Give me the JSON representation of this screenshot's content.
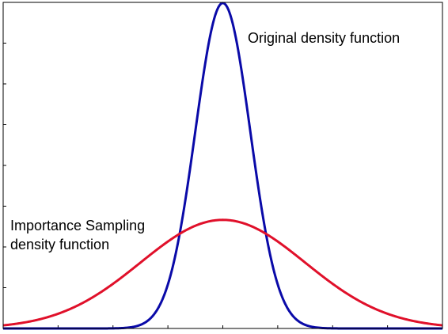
{
  "chart_data": {
    "type": "line",
    "title": "",
    "xlabel": "",
    "ylabel": "",
    "xlim": [
      -4,
      4
    ],
    "ylim": [
      0,
      1.0
    ],
    "grid": false,
    "x_ticks": [
      -4,
      -3,
      -2,
      -1,
      0,
      1,
      2,
      3,
      4
    ],
    "y_ticks": [
      0,
      0.125,
      0.25,
      0.375,
      0.5,
      0.625,
      0.75,
      0.875,
      1.0
    ],
    "series": [
      {
        "color": "#0a0aa8",
        "distribution": "normal",
        "mean": 0,
        "std": 0.5,
        "peak": 0.998
      },
      {
        "color": "#e0102a",
        "distribution": "normal",
        "mean": 0,
        "std": 1.5,
        "peak": 0.333
      }
    ],
    "annotations": [
      {
        "series_index": 0,
        "lines": [
          "Original density function"
        ]
      },
      {
        "series_index": 1,
        "lines": [
          "Importance Sampling",
          "density function"
        ]
      }
    ]
  }
}
